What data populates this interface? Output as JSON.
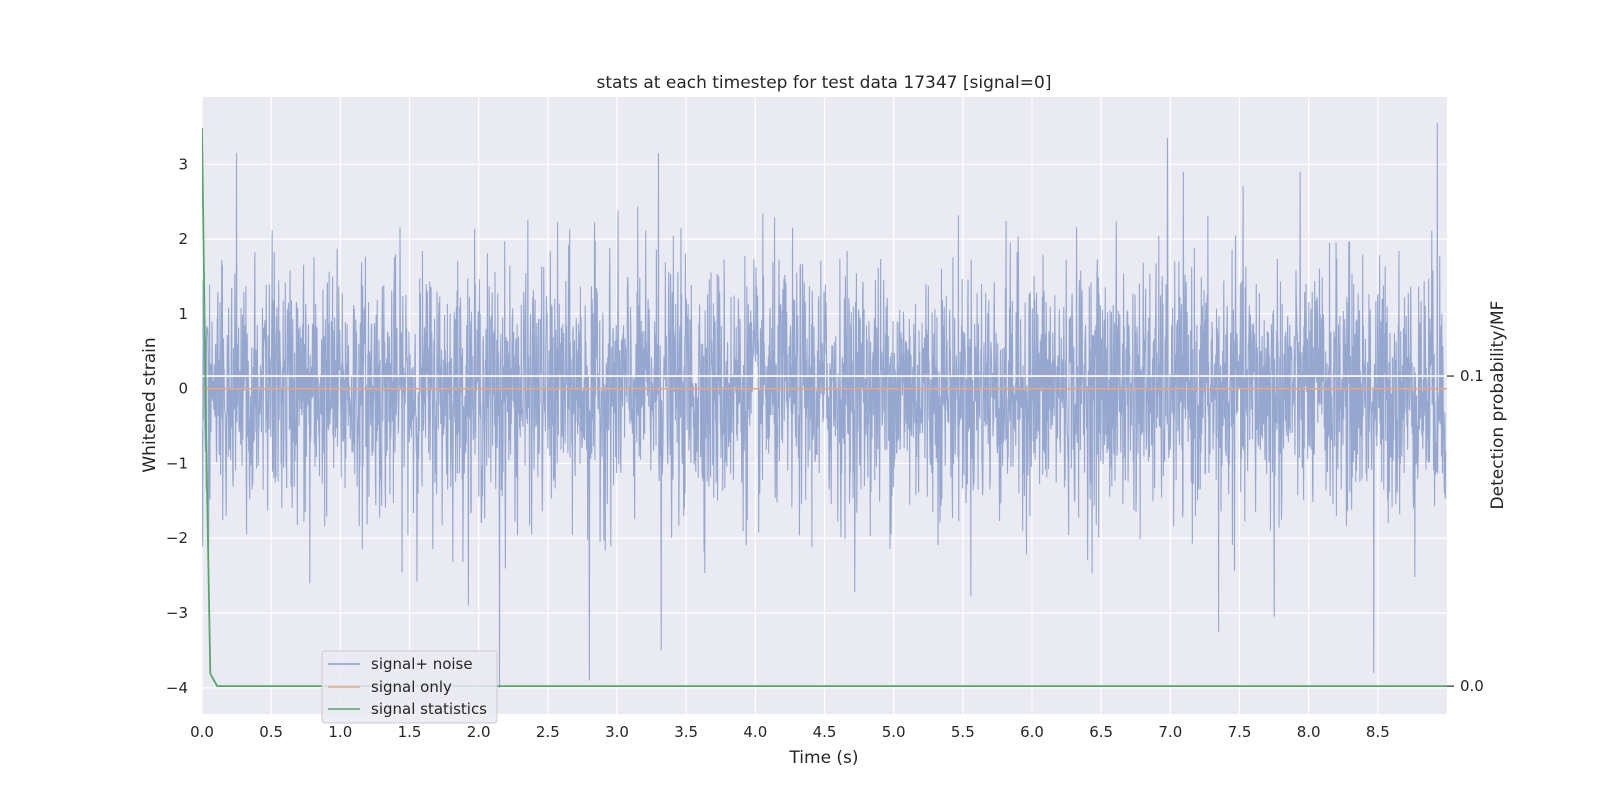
{
  "chart_data": {
    "type": "line",
    "title": "stats at each timestep for test data 17347 [signal=0]",
    "xlabel": "Time (s)",
    "ylabel": "Whitened strain",
    "y2label": "Detection probability/MF",
    "xlim": [
      0.0,
      9.0
    ],
    "ylim": [
      -4.35,
      3.9
    ],
    "y2lim": [
      -0.009,
      0.19
    ],
    "xticks": [
      "0.0",
      "0.5",
      "1.0",
      "1.5",
      "2.0",
      "2.5",
      "3.0",
      "3.5",
      "4.0",
      "4.5",
      "5.0",
      "5.5",
      "6.0",
      "6.5",
      "7.0",
      "7.5",
      "8.0",
      "8.5"
    ],
    "yticks": [
      "3",
      "2",
      "1",
      "0",
      "−1",
      "−2",
      "−3",
      "−4"
    ],
    "y2ticks": [
      "0.1",
      "0.0"
    ],
    "grid": true,
    "legend_position": "lower-left",
    "series": [
      {
        "name": "signal+ noise",
        "color": "#8da0cb",
        "description": "whitened strain noise, roughly Gaussian, std ~1, peaks near +3.55 and -4.0",
        "extremes": [
          [
            0.25,
            3.15
          ],
          [
            0.78,
            -2.6
          ],
          [
            2.15,
            -4.0
          ],
          [
            2.8,
            -3.9
          ],
          [
            3.3,
            3.15
          ],
          [
            3.32,
            -3.5
          ],
          [
            6.98,
            3.35
          ],
          [
            7.35,
            -3.25
          ],
          [
            7.75,
            -3.05
          ],
          [
            8.47,
            -3.8
          ],
          [
            8.93,
            3.55
          ]
        ]
      },
      {
        "name": "signal only",
        "color": "#e5a785",
        "x": [
          0.0,
          9.0
        ],
        "y": [
          0.0,
          0.0
        ]
      },
      {
        "name": "signal statistics",
        "color": "#55a868",
        "axis": "right",
        "x": [
          0.0,
          0.03,
          0.06,
          0.11,
          9.0
        ],
        "y": [
          0.18,
          0.08,
          0.004,
          0.0,
          0.0
        ]
      }
    ],
    "reference_line": {
      "axis": "right",
      "y": 0.1,
      "color": "#ffffff"
    }
  }
}
